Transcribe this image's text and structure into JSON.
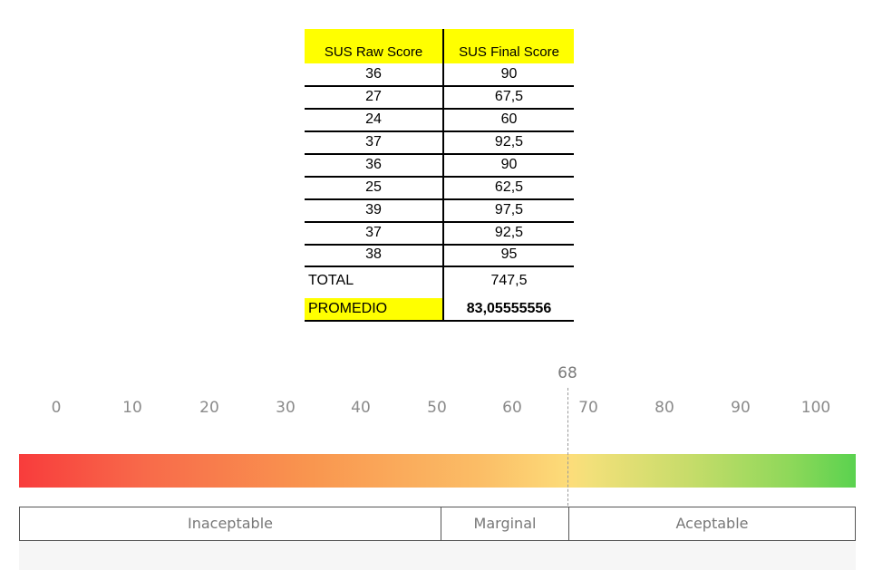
{
  "table": {
    "headers": [
      "SUS Raw Score",
      "SUS Final Score"
    ],
    "rows": [
      [
        "36",
        "90"
      ],
      [
        "27",
        "67,5"
      ],
      [
        "24",
        "60"
      ],
      [
        "37",
        "92,5"
      ],
      [
        "36",
        "90"
      ],
      [
        "25",
        "62,5"
      ],
      [
        "39",
        "97,5"
      ],
      [
        "37",
        "92,5"
      ],
      [
        "38",
        "95"
      ]
    ],
    "total_label": "TOTAL",
    "total_value": "747,5",
    "average_label": "PROMEDIO",
    "average_value": "83,05555556",
    "highlight_color": "#ffff00"
  },
  "scale": {
    "ticks": [
      "0",
      "10",
      "20",
      "30",
      "40",
      "50",
      "60",
      "70",
      "80",
      "90",
      "100"
    ],
    "marker_label": "68",
    "marker_value": 68,
    "bands": [
      "Inaceptable",
      "Marginal",
      "Aceptable"
    ],
    "gradient_colors": [
      "#f83c3c",
      "#fcdd7a",
      "#5ad24f"
    ]
  }
}
